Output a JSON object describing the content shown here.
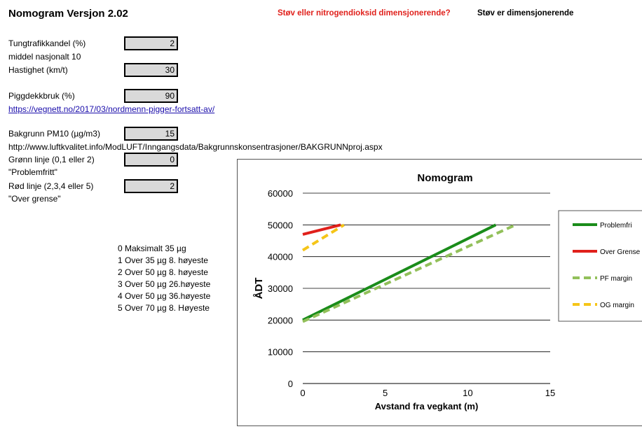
{
  "header": {
    "title": "Nomogram Versjon 2.02",
    "question": "Støv eller nitrogendioksid dimensjonerende?",
    "answer": "Støv er dimensjonerende"
  },
  "inputs": {
    "tungtrafikk_label": "Tungtrafikkandel (%)",
    "tungtrafikk_value": "2",
    "middel_note": "middel nasjonalt 10",
    "hastighet_label": "Hastighet (km/t)",
    "hastighet_value": "30",
    "piggdekk_label": "Piggdekkbruk (%)",
    "piggdekk_value": "90",
    "piggdekk_link": "https://vegnett.no/2017/03/nordmenn-pigger-fortsatt-av/",
    "bakgrunn_label": "Bakgrunn PM10 (µg/m3)",
    "bakgrunn_value": "15",
    "bakgrunn_url": "http://www.luftkvalitet.info/ModLUFT/Inngangsdata/Bakgrunnskonsentrasjoner/BAKGRUNNproj.aspx",
    "gronn_label": "Grønn linje (0,1 eller 2)",
    "gronn_value": "0",
    "gronn_note": "\"Problemfritt\"",
    "rod_label": "Rød linje (2,3,4 eller 5)",
    "rod_value": "2",
    "rod_note": "\"Over grense\""
  },
  "levels": [
    "0 Maksimalt 35 µg",
    "1 Over 35 µg 8. høyeste",
    "2 Over 50 µg 8. høyeste",
    "3 Over 50 µg 26.høyeste",
    "4 Over 50 µg 36.høyeste",
    "5 Over 70 µg 8. Høyeste"
  ],
  "chart_data": {
    "type": "line",
    "title": "Nomogram",
    "xlabel": "Avstand fra vegkant (m)",
    "ylabel": "ÅDT",
    "xlim": [
      0,
      15
    ],
    "ylim": [
      0,
      60000
    ],
    "xticks": [
      0,
      5,
      10,
      15
    ],
    "yticks": [
      0,
      10000,
      20000,
      30000,
      40000,
      50000,
      60000
    ],
    "grid": "horizontal",
    "legend_position": "right",
    "series": [
      {
        "name": "Problemfri",
        "color": "#1a8c1a",
        "dash": "solid",
        "x": [
          0,
          11.7
        ],
        "y": [
          20000,
          50000
        ]
      },
      {
        "name": "Over Grense",
        "color": "#e0201b",
        "dash": "solid",
        "x": [
          0,
          2.3
        ],
        "y": [
          47000,
          50000
        ]
      },
      {
        "name": "PF margin",
        "color": "#92c05a",
        "dash": "dashed",
        "x": [
          0,
          12.9
        ],
        "y": [
          19500,
          50000
        ]
      },
      {
        "name": "OG margin",
        "color": "#f5c518",
        "dash": "dashed",
        "x": [
          0,
          2.5
        ],
        "y": [
          42000,
          50000
        ]
      }
    ]
  }
}
